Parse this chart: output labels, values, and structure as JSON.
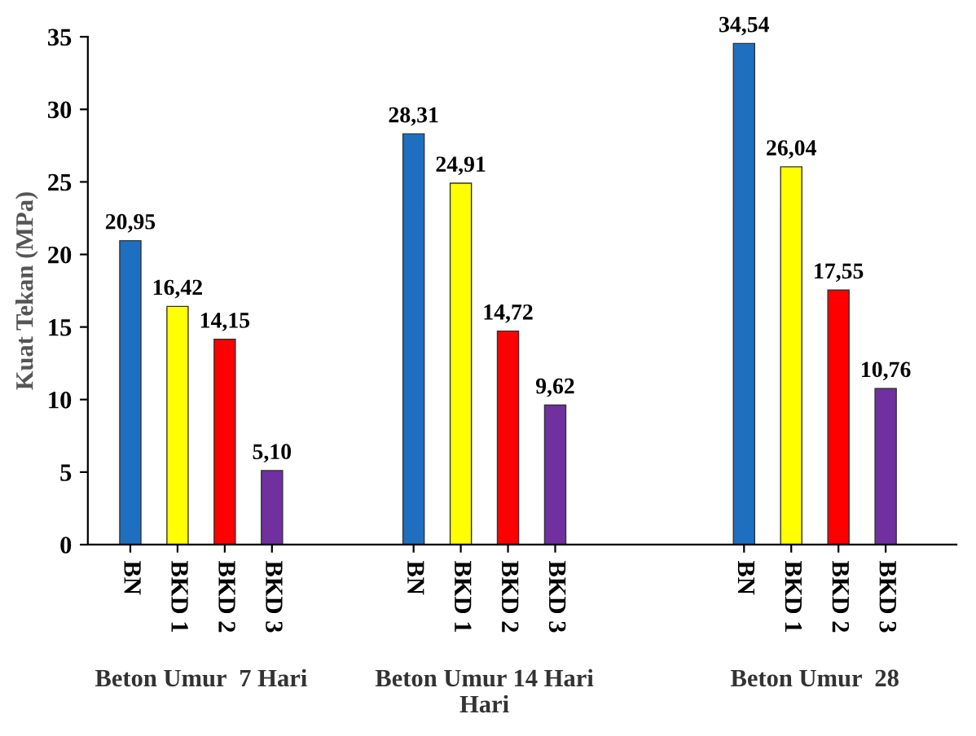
{
  "chart_data": {
    "type": "bar",
    "ylabel": "Kuat Tekan (MPa)",
    "categories": [
      "BN",
      "BKD 1",
      "BKD 2",
      "BKD 3",
      null,
      null,
      "BN",
      "BKD 1",
      "BKD 2",
      "BKD 3",
      null,
      null,
      null,
      "BN",
      "BKD 1",
      "BKD 2",
      "BKD 3",
      null
    ],
    "values": [
      20.95,
      16.42,
      14.15,
      5.1,
      null,
      null,
      28.31,
      24.91,
      14.72,
      9.62,
      null,
      null,
      null,
      34.54,
      26.04,
      17.55,
      10.76,
      null
    ],
    "colors": [
      "#1f6fc0",
      "#ffff00",
      "#ff0000",
      "#7030a0",
      null,
      null,
      "#1f6fc0",
      "#ffff00",
      "#ff0000",
      "#7030a0",
      null,
      null,
      null,
      "#1f6fc0",
      "#ffff00",
      "#ff0000",
      "#7030a0",
      null
    ],
    "value_labels": [
      "20,95",
      "16,42",
      "14,15",
      "5,10",
      null,
      null,
      "28,31",
      "24,91",
      "14,72",
      "9,62",
      null,
      null,
      null,
      "34,54",
      "26,04",
      "17,55",
      "10,76",
      null
    ],
    "annotations": [
      "Beton Umur  7 Hari",
      "Beton Umur 14 Hari\nHari",
      "Beton Umur  28"
    ],
    "ylim": [
      0,
      35
    ],
    "yticks": [
      0,
      5,
      10,
      15,
      20,
      25,
      30,
      35
    ],
    "grid": false,
    "legend": false
  }
}
